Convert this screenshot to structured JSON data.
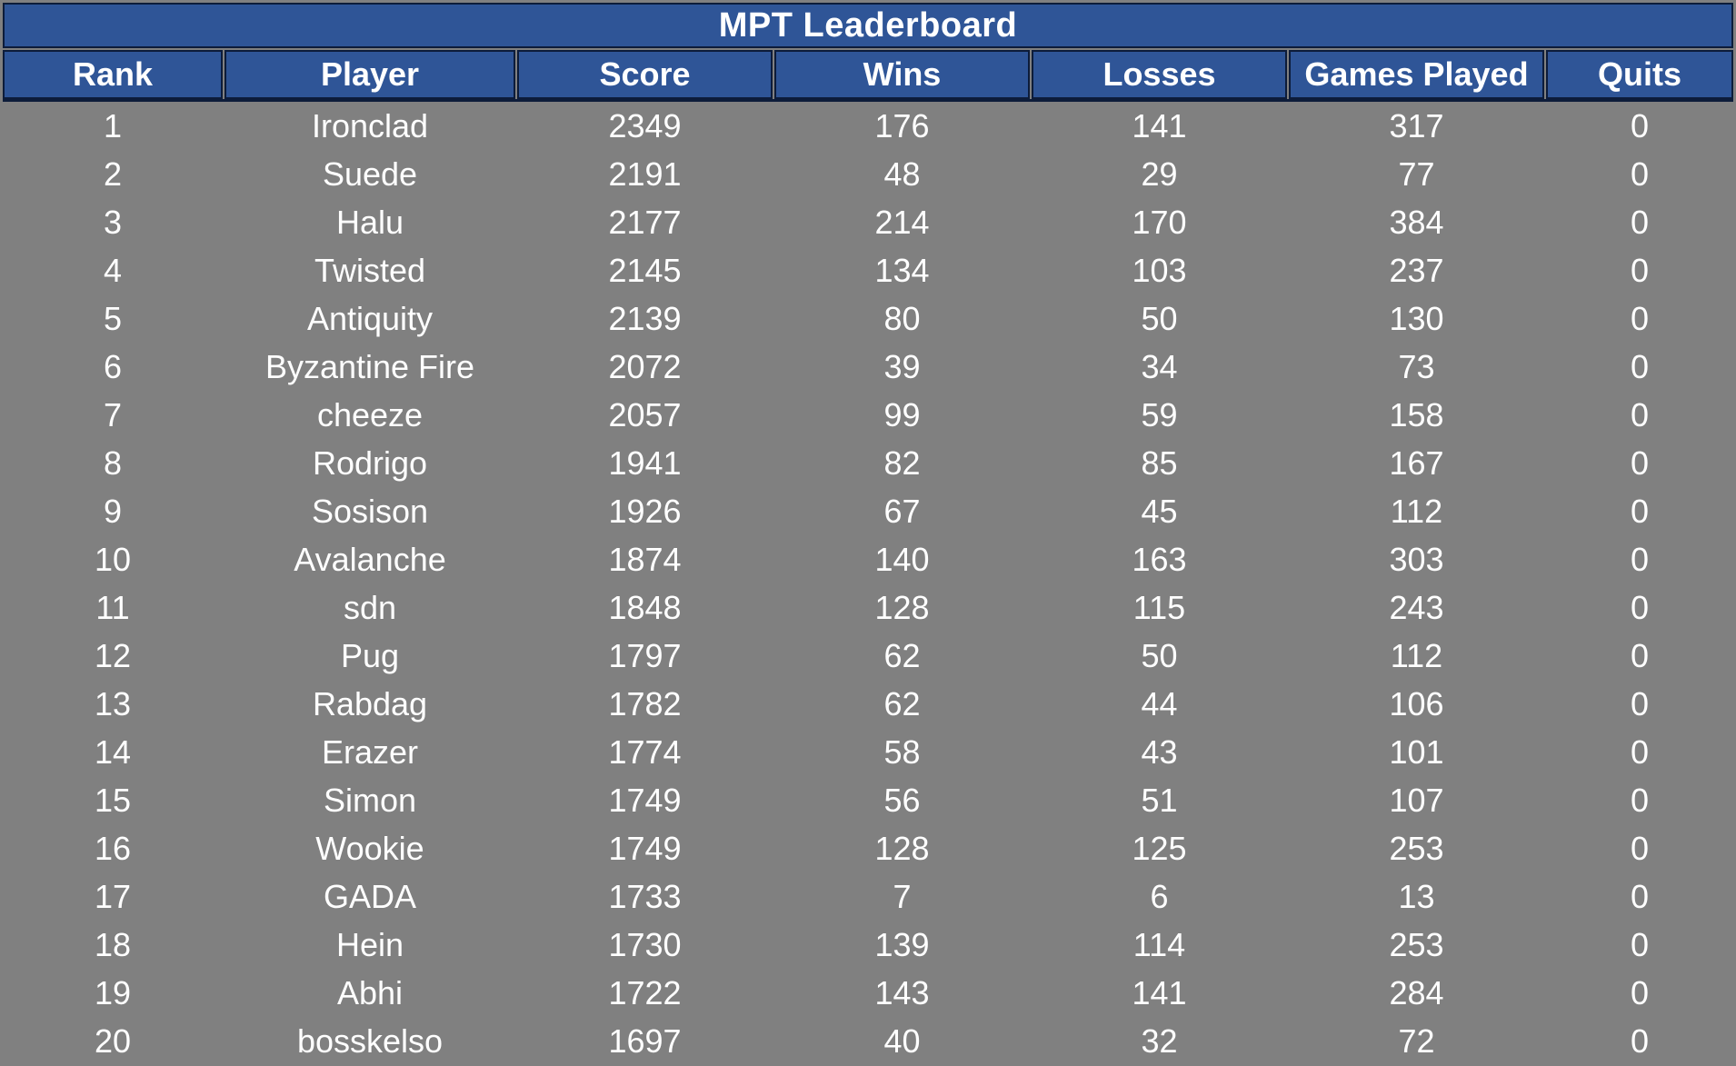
{
  "title": "MPT Leaderboard",
  "columns": [
    "Rank",
    "Player",
    "Score",
    "Wins",
    "Losses",
    "Games Played",
    "Quits"
  ],
  "rows": [
    [
      "1",
      "Ironclad",
      "2349",
      "176",
      "141",
      "317",
      "0"
    ],
    [
      "2",
      "Suede",
      "2191",
      "48",
      "29",
      "77",
      "0"
    ],
    [
      "3",
      "Halu",
      "2177",
      "214",
      "170",
      "384",
      "0"
    ],
    [
      "4",
      "Twisted",
      "2145",
      "134",
      "103",
      "237",
      "0"
    ],
    [
      "5",
      "Antiquity",
      "2139",
      "80",
      "50",
      "130",
      "0"
    ],
    [
      "6",
      "Byzantine Fire",
      "2072",
      "39",
      "34",
      "73",
      "0"
    ],
    [
      "7",
      "cheeze",
      "2057",
      "99",
      "59",
      "158",
      "0"
    ],
    [
      "8",
      "Rodrigo",
      "1941",
      "82",
      "85",
      "167",
      "0"
    ],
    [
      "9",
      "Sosison",
      "1926",
      "67",
      "45",
      "112",
      "0"
    ],
    [
      "10",
      "Avalanche",
      "1874",
      "140",
      "163",
      "303",
      "0"
    ],
    [
      "11",
      "sdn",
      "1848",
      "128",
      "115",
      "243",
      "0"
    ],
    [
      "12",
      "Pug",
      "1797",
      "62",
      "50",
      "112",
      "0"
    ],
    [
      "13",
      "Rabdag",
      "1782",
      "62",
      "44",
      "106",
      "0"
    ],
    [
      "14",
      "Erazer",
      "1774",
      "58",
      "43",
      "101",
      "0"
    ],
    [
      "15",
      "Simon",
      "1749",
      "56",
      "51",
      "107",
      "0"
    ],
    [
      "16",
      "Wookie",
      "1749",
      "128",
      "125",
      "253",
      "0"
    ],
    [
      "17",
      "GADA",
      "1733",
      "7",
      "6",
      "13",
      "0"
    ],
    [
      "18",
      "Hein",
      "1730",
      "139",
      "114",
      "253",
      "0"
    ],
    [
      "19",
      "Abhi",
      "1722",
      "143",
      "141",
      "284",
      "0"
    ],
    [
      "20",
      "bosskelso",
      "1697",
      "40",
      "32",
      "72",
      "0"
    ]
  ],
  "colors": {
    "header_bg": "#2f5597",
    "border": "#0d1c3a",
    "body_bg": "#808080",
    "text": "#ffffff"
  }
}
